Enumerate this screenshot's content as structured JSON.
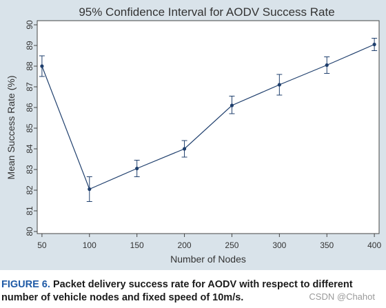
{
  "chart_data": {
    "type": "line",
    "title": "95% Confidence Interval for AODV Success Rate",
    "xlabel": "Number of Nodes",
    "ylabel": "Mean Success Rate (%)",
    "x": [
      50,
      100,
      150,
      200,
      250,
      300,
      350,
      400
    ],
    "x_ticks": [
      "50",
      "100",
      "150",
      "200",
      "250",
      "300",
      "350",
      "400"
    ],
    "y_ticks": [
      "80",
      "81",
      "82",
      "83",
      "84",
      "85",
      "86",
      "87",
      "88",
      "89",
      "90"
    ],
    "xlim": [
      45,
      405
    ],
    "ylim": [
      79.9,
      90.2
    ],
    "series": [
      {
        "values": [
          88.0,
          82.05,
          83.05,
          84.0,
          86.1,
          87.1,
          88.05,
          89.05
        ],
        "lower": [
          87.5,
          81.45,
          82.65,
          83.6,
          85.7,
          86.6,
          87.65,
          88.75
        ],
        "upper": [
          88.5,
          82.65,
          83.45,
          84.4,
          86.55,
          87.6,
          88.45,
          89.35
        ]
      }
    ],
    "grid": false,
    "colors": {
      "line": "#1f3f6d",
      "plot_bg": "#ffffff",
      "figure_bg": "#d9e3ea",
      "text": "#333333"
    }
  },
  "caption": {
    "label": "FIGURE 6.",
    "text": "Packet delivery success rate for AODV with respect to different number of vehicle nodes and fixed speed of 10m/s."
  },
  "watermark": "CSDN @Chahot"
}
